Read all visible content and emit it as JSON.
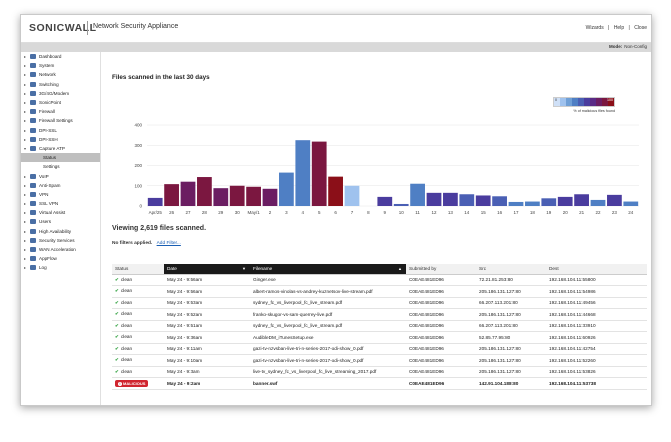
{
  "header": {
    "logo": "SONICWALL",
    "product": "Network Security Appliance",
    "links": [
      "Wizards",
      "|",
      "Help",
      "|",
      "Close"
    ],
    "mode_label": "Mode:",
    "mode_value": "Non-Config"
  },
  "sidebar": {
    "items": [
      {
        "label": "Dashboard",
        "expanded": false
      },
      {
        "label": "System",
        "expanded": false
      },
      {
        "label": "Network",
        "expanded": false
      },
      {
        "label": "Switching",
        "expanded": false
      },
      {
        "label": "3G/4G/Modem",
        "expanded": false
      },
      {
        "label": "SonicPoint",
        "expanded": false
      },
      {
        "label": "Firewall",
        "expanded": false
      },
      {
        "label": "Firewall Settings",
        "expanded": false
      },
      {
        "label": "DPI-SSL",
        "expanded": false
      },
      {
        "label": "DPI-SSH",
        "expanded": false
      },
      {
        "label": "Capture ATP",
        "expanded": true
      }
    ],
    "subitems": [
      {
        "label": "Status",
        "active": true
      },
      {
        "label": "Settings",
        "active": false
      }
    ],
    "items_after": [
      {
        "label": "VoIP"
      },
      {
        "label": "Anti-Spam"
      },
      {
        "label": "VPN"
      },
      {
        "label": "SSL VPN"
      },
      {
        "label": "Virtual Assist"
      },
      {
        "label": "Users"
      },
      {
        "label": "High Availability"
      },
      {
        "label": "Security Services"
      },
      {
        "label": "WAN Acceleration"
      },
      {
        "label": "AppFlow"
      },
      {
        "label": "Log"
      }
    ]
  },
  "main": {
    "chart_title": "Files scanned in the last 30 days",
    "legend_min": "0",
    "legend_max": "100",
    "legend_caption": "% of malicious files found",
    "legend_colors": [
      "#cfe0f7",
      "#9fc2ee",
      "#6f9fd6",
      "#4f7fc4",
      "#4a5fb4",
      "#4a3c9e",
      "#5a2a86",
      "#6b1d62",
      "#7b1740",
      "#8b0f18"
    ],
    "viewing": "Viewing 2,619 files scanned.",
    "no_filters": "No filters applied.",
    "add_filter": "Add Filter..."
  },
  "chart_data": {
    "type": "bar",
    "title": "Files scanned in the last 30 days",
    "categories": [
      "Apr/25",
      "26",
      "27",
      "28",
      "29",
      "30",
      "May/1",
      "2",
      "3",
      "4",
      "5",
      "6",
      "7",
      "8",
      "9",
      "10",
      "11",
      "12",
      "13",
      "14",
      "15",
      "16",
      "17",
      "18",
      "19",
      "20",
      "21",
      "22",
      "23",
      "24"
    ],
    "values": [
      40,
      108,
      120,
      143,
      88,
      100,
      95,
      85,
      165,
      325,
      318,
      145,
      100,
      0,
      45,
      10,
      110,
      65,
      65,
      58,
      52,
      48,
      20,
      22,
      38,
      45,
      58,
      30,
      55,
      22
    ],
    "colors": [
      "#4a3c9e",
      "#7b1740",
      "#6b1d62",
      "#7b1740",
      "#6b1d62",
      "#7b1740",
      "#7b1740",
      "#6b1d62",
      "#4f7fc4",
      "#4f7fc4",
      "#7b1740",
      "#8b0f18",
      "#9fc2ee",
      "#4a3c9e",
      "#4a3c9e",
      "#4a5fb4",
      "#4f7fc4",
      "#4a3c9e",
      "#4a3c9e",
      "#4a5fb4",
      "#4a3c9e",
      "#4a5fb4",
      "#4f7fc4",
      "#4f7fc4",
      "#4a5fb4",
      "#4a3c9e",
      "#4a3c9e",
      "#4f7fc4",
      "#4a3c9e",
      "#4f7fc4"
    ],
    "ylim": [
      0,
      400
    ],
    "yticks": [
      0,
      100,
      200,
      300,
      400
    ],
    "grid": true
  },
  "table": {
    "columns": [
      "Status",
      "Date",
      "Filename",
      "Submitted by",
      "Src",
      "Dest"
    ],
    "rows": [
      {
        "status": "clean",
        "date": "May 24 - 9:56am",
        "filename": "Ginger.exe",
        "submitted": "C0EAE481ED96",
        "src": "72.21.81.253:80",
        "dest": "192.168.104.11:55800"
      },
      {
        "status": "clean",
        "date": "May 24 - 9:56am",
        "filename": "albert-ramos-vinolas-vs-andrey-kuznetsov-live-stream.pdf",
        "submitted": "C0EAE481ED96",
        "src": "205.186.131.127:80",
        "dest": "192.168.104.11:54986"
      },
      {
        "status": "clean",
        "date": "May 24 - 9:53am",
        "filename": "sydney_fc_vs_liverpool_fc_live_stream.pdf",
        "submitted": "C0EAE481ED96",
        "src": "66.207.113.201:80",
        "dest": "192.168.104.11:49456"
      },
      {
        "status": "clean",
        "date": "May 24 - 9:52am",
        "filename": "franko-skugor-vs-sam-querrey-live.pdf",
        "submitted": "C0EAE481ED96",
        "src": "205.186.131.127:80",
        "dest": "192.168.104.11:44668"
      },
      {
        "status": "clean",
        "date": "May 24 - 9:51am",
        "filename": "sydney_fc_vs_liverpool_fc_live_stream.pdf",
        "submitted": "C0EAE481ED96",
        "src": "66.207.113.201:80",
        "dest": "192.168.104.11:33910"
      },
      {
        "status": "clean",
        "date": "May 24 - 9:36am",
        "filename": "AudibleDM_iTunesSetup.exe",
        "submitted": "C0EAE481ED96",
        "src": "52.85.77.95:80",
        "dest": "192.168.104.11:60926"
      },
      {
        "status": "clean",
        "date": "May 24 - 9:11am",
        "filename": "gazi-tv-nzvsban-live-tri-n-series-2017-odi-show_0.pdf",
        "submitted": "C0EAE481ED96",
        "src": "205.186.131.127:80",
        "dest": "192.168.104.11:42754"
      },
      {
        "status": "clean",
        "date": "May 24 - 9:10am",
        "filename": "gazi-tv-nzvsban-live-tri-n-series-2017-odi-show_0.pdf",
        "submitted": "C0EAE481ED96",
        "src": "205.186.131.127:80",
        "dest": "192.168.104.11:52260"
      },
      {
        "status": "clean",
        "date": "May 24 - 9:3am",
        "filename": "live-tv_sydney_fc_vs_liverpool_fc_live_streaming_2017.pdf",
        "submitted": "C0EAE481ED96",
        "src": "205.186.131.127:80",
        "dest": "192.168.104.11:53826"
      },
      {
        "status": "MALICIOUS",
        "date": "May 24 - 9:2am",
        "filename": "banner.swf",
        "submitted": "C0EAE481ED96",
        "src": "142.91.104.188:80",
        "dest": "192.168.104.11:53738"
      }
    ]
  }
}
